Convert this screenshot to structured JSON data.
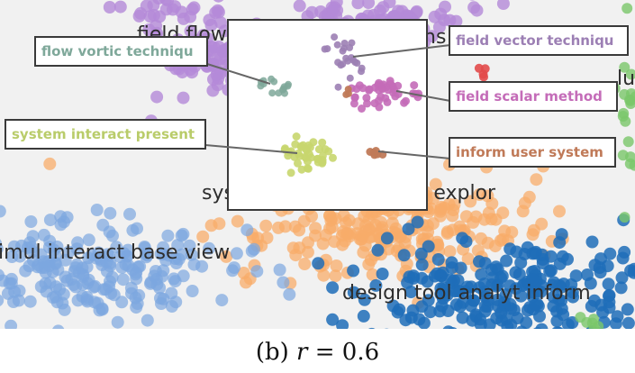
{
  "figure": {
    "background_labels": [
      {
        "id": "field-flow",
        "text": "field flow"
      },
      {
        "id": "lus",
        "text": "lu"
      },
      {
        "id": "system-inform",
        "text": "system interact inform explor"
      },
      {
        "id": "simul",
        "text": "imul interact base view"
      },
      {
        "id": "design",
        "text": "design tool analyt inform"
      },
      {
        "id": "ns",
        "text": "ns"
      }
    ],
    "callouts": [
      {
        "id": "flow-vortic",
        "text": "flow vortic techniqu",
        "color": "#7fa89a"
      },
      {
        "id": "system-interact",
        "text": "system interact present",
        "color": "#b9cc6a"
      },
      {
        "id": "field-vector",
        "text": "field vector techniqu",
        "color": "#9c7fb4"
      },
      {
        "id": "field-scalar",
        "text": "field scalar method",
        "color": "#c46cb8"
      },
      {
        "id": "inform-user",
        "text": "inform user system",
        "color": "#c07a58"
      }
    ],
    "cluster_colors": {
      "purple": "#b48ad8",
      "orange": "#f8ac6a",
      "light_blue": "#7ca6e0",
      "dark_blue": "#1f6db8",
      "green": "#7ac76a",
      "red": "#e24a4a"
    }
  },
  "caption": {
    "prefix": "(b) ",
    "variable": "r",
    "equation": " = 0.6"
  }
}
